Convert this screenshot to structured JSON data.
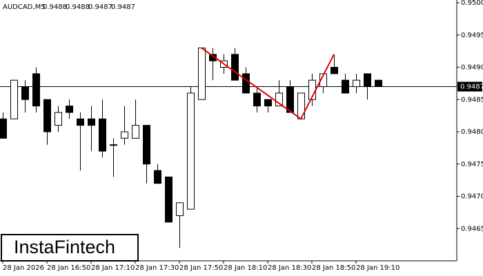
{
  "chart_data": {
    "type": "candlestick",
    "symbol": "AUDCAD,M5",
    "header_values": [
      0.9488,
      0.9488,
      0.9487,
      0.9487
    ],
    "categories": [
      "28 Jan 2026",
      null,
      null,
      null,
      "28 Jan 16:50",
      null,
      null,
      null,
      "28 Jan 17:10",
      null,
      null,
      null,
      "28 Jan 17:30",
      null,
      null,
      null,
      "28 Jan 17:50",
      null,
      null,
      null,
      "28 Jan 18:10",
      null,
      null,
      null,
      "28 Jan 18:30",
      null,
      null,
      null,
      "28 Jan 18:50",
      null,
      null,
      null,
      "28 Jan 19:10",
      null,
      null
    ],
    "open": [
      0.9482,
      0.9482,
      0.9487,
      0.9489,
      0.9485,
      0.9481,
      0.9484,
      0.9482,
      0.9482,
      0.9482,
      0.9478,
      0.9479,
      0.9479,
      0.9481,
      0.9474,
      0.9473,
      0.9467,
      0.9468,
      0.9485,
      0.9492,
      0.949,
      0.9492,
      0.9489,
      0.9486,
      0.9485,
      0.9484,
      0.9487,
      0.9482,
      0.9485,
      0.9487,
      0.949,
      0.9488,
      0.9487,
      0.9489,
      0.9488
    ],
    "high": [
      0.9483,
      0.9488,
      0.9488,
      0.949,
      0.9485,
      0.9484,
      0.9485,
      0.9483,
      0.9484,
      0.9485,
      0.9479,
      0.9484,
      0.9485,
      0.9481,
      0.9475,
      0.9473,
      0.9469,
      0.9487,
      0.9493,
      0.9493,
      0.9492,
      0.9493,
      0.949,
      0.9487,
      0.9485,
      0.9488,
      0.9488,
      0.9486,
      0.9489,
      0.9489,
      0.9492,
      0.9489,
      0.9489,
      0.9489,
      0.9488
    ],
    "low": [
      0.9479,
      0.9482,
      0.9483,
      0.9483,
      0.9478,
      0.948,
      0.9482,
      0.9474,
      0.9477,
      0.9476,
      0.9473,
      0.9478,
      0.9479,
      0.9472,
      0.9472,
      0.9466,
      0.9462,
      0.9468,
      0.9485,
      0.9488,
      0.9489,
      0.9488,
      0.9486,
      0.9483,
      0.9483,
      0.9484,
      0.9483,
      0.9482,
      0.9484,
      0.9486,
      0.9489,
      0.9486,
      0.9486,
      0.9485,
      0.9487
    ],
    "close": [
      0.9479,
      0.9488,
      0.9485,
      0.9484,
      0.948,
      0.9483,
      0.9483,
      0.9481,
      0.9481,
      0.9477,
      0.9478,
      0.948,
      0.9481,
      0.9475,
      0.9472,
      0.9466,
      0.9469,
      0.9486,
      0.9493,
      0.9491,
      0.9491,
      0.9488,
      0.9486,
      0.9484,
      0.9484,
      0.9486,
      0.9483,
      0.9486,
      0.9488,
      0.9489,
      0.9489,
      0.9486,
      0.9488,
      0.9487,
      0.9487
    ],
    "up_color": "#ffffff",
    "down_color": "#000000",
    "ylim": [
      0.946,
      0.95
    ],
    "yticks": [
      0.9465,
      {
        "value": 0.947,
        "label": "0.9470"
      },
      0.9475,
      {
        "value": 0.948,
        "label": "0.9480"
      },
      0.9485,
      {
        "value": 0.949,
        "label": "0.9490"
      },
      0.9495,
      {
        "value": 0.95,
        "label": "0.9500"
      }
    ],
    "current_price": 0.9487,
    "pattern": {
      "color": "#e00000",
      "points": [
        [
          18,
          0.9493
        ],
        [
          27,
          0.9482
        ],
        [
          30,
          0.9492
        ]
      ]
    },
    "logo": "InstaFintech"
  }
}
